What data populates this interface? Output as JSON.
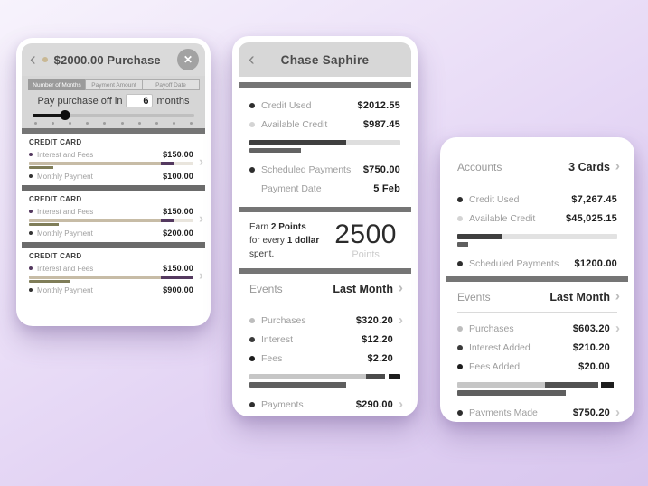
{
  "icons": {
    "back": "‹",
    "close": "✕",
    "chevron_right": "›"
  },
  "purchase_card": {
    "title": "$2000.00 Purchase",
    "dot_color": "#c9b894",
    "tabs": [
      {
        "label": "Number of Months",
        "selected": true
      },
      {
        "label": "Payment Amount",
        "selected": false
      },
      {
        "label": "Payoff Date",
        "selected": false
      }
    ],
    "payoff": {
      "prefix": "Pay purchase off in",
      "value": "6",
      "suffix": "months",
      "slider_pct": 20,
      "tick_count": 10
    },
    "sections": [
      {
        "heading": "CREDIT CARD",
        "interest": {
          "bullet": "#54395f",
          "label": "Interest and Fees",
          "value": "$150.00"
        },
        "monthly": {
          "bullet": "#333333",
          "label": "Monthly Payment",
          "value": "$100.00"
        },
        "bar": {
          "h": 4,
          "track": "#e9e5dd",
          "segments": [
            {
              "color": "#c7bca6",
              "pct": 80
            },
            {
              "color": "#54395f",
              "pct": 8
            }
          ]
        },
        "subbar": {
          "h": 3,
          "track": "transparent",
          "segments": [
            {
              "color": "#7f7d58",
              "pct": 15
            }
          ]
        }
      },
      {
        "heading": "CREDIT CARD",
        "interest": {
          "bullet": "#54395f",
          "label": "Interest and Fees",
          "value": "$150.00"
        },
        "monthly": {
          "bullet": "#333333",
          "label": "Monthly Payment",
          "value": "$200.00"
        },
        "bar": {
          "h": 4,
          "track": "#e9e5dd",
          "segments": [
            {
              "color": "#c7bca6",
              "pct": 80
            },
            {
              "color": "#54395f",
              "pct": 8
            }
          ]
        },
        "subbar": {
          "h": 3,
          "track": "transparent",
          "segments": [
            {
              "color": "#7f7d58",
              "pct": 18
            }
          ]
        }
      },
      {
        "heading": "CREDIT CARD",
        "interest": {
          "bullet": "#54395f",
          "label": "Interest and Fees",
          "value": "$150.00"
        },
        "monthly": {
          "bullet": "#333333",
          "label": "Monthly Payment",
          "value": "$900.00"
        },
        "bar": {
          "h": 4,
          "track": "#e9e5dd",
          "segments": [
            {
              "color": "#c7bca6",
              "pct": 80
            },
            {
              "color": "#54395f",
              "pct": 20
            }
          ]
        },
        "subbar": {
          "h": 3,
          "track": "transparent",
          "segments": [
            {
              "color": "#7f7d58",
              "pct": 25
            }
          ]
        }
      }
    ]
  },
  "account_card": {
    "title": "Chase Saphire",
    "summary": {
      "rows": [
        {
          "bullet": "#2e2e2e",
          "label": "Credit Used",
          "value": "$2012.55"
        },
        {
          "bullet": "#d4d4d4",
          "label": "Available Credit",
          "value": "$987.45"
        }
      ],
      "bars": [
        {
          "h": 6,
          "track": "#dedede",
          "segments": [
            {
              "color": "#3f3f3f",
              "pct": 64
            }
          ]
        },
        {
          "h": 5,
          "track": "transparent",
          "segments": [
            {
              "color": "#636363",
              "pct": 34
            }
          ]
        }
      ],
      "scheduled": {
        "bullet": "#2e2e2e",
        "label": "Scheduled Payments",
        "value": "$750.00"
      },
      "payment_date": {
        "label": "Payment Date",
        "value": "5 Feb"
      }
    },
    "points": {
      "line1": [
        {
          "t": "Earn ",
          "b": false
        },
        {
          "t": "2 Points",
          "b": true
        }
      ],
      "line2": [
        {
          "t": "for every ",
          "b": false
        },
        {
          "t": "1 dollar",
          "b": true
        },
        {
          "t": " spent.",
          "b": false
        }
      ],
      "value": "2500",
      "unit": "Points"
    },
    "events": {
      "title": "Events",
      "filter": "Last Month",
      "rows": [
        {
          "bullet": "#bdbdbd",
          "label": "Purchases",
          "value": "$320.20",
          "chevron": true
        },
        {
          "bullet": "#3a3a3a",
          "label": "Interest",
          "value": "$12.20",
          "chevron": false
        },
        {
          "bullet": "#1c1c1c",
          "label": "Fees",
          "value": "$2.20",
          "chevron": false
        }
      ],
      "bars": [
        {
          "h": 6,
          "track": "transparent",
          "segments": [
            {
              "color": "#c6c6c6",
              "pct": 77
            },
            {
              "color": "#4b4b4b",
              "pct": 13
            },
            {
              "color": "#ffffff",
              "pct": 2
            },
            {
              "color": "#1d1d1d",
              "pct": 8
            }
          ]
        },
        {
          "h": 6,
          "track": "transparent",
          "segments": [
            {
              "color": "#5f5f5f",
              "pct": 64
            }
          ]
        }
      ],
      "footer_row": {
        "bullet": "#2e2e2e",
        "label": "Payments",
        "value": "$290.00",
        "chevron": true
      }
    }
  },
  "overview_card": {
    "accounts": {
      "label": "Accounts",
      "value": "3 Cards"
    },
    "summary": {
      "rows": [
        {
          "bullet": "#2e2e2e",
          "label": "Credit Used",
          "value": "$7,267.45"
        },
        {
          "bullet": "#d4d4d4",
          "label": "Available Credit",
          "value": "$45,025.15"
        }
      ],
      "bars": [
        {
          "h": 6,
          "track": "#e2e2e2",
          "segments": [
            {
              "color": "#3f3f3f",
              "pct": 28
            }
          ]
        },
        {
          "h": 5,
          "track": "transparent",
          "segments": [
            {
              "color": "#5f5f5f",
              "pct": 7
            }
          ]
        }
      ],
      "scheduled": {
        "bullet": "#2e2e2e",
        "label": "Scheduled Payments",
        "value": "$1200.00"
      }
    },
    "events": {
      "title": "Events",
      "filter": "Last Month",
      "rows": [
        {
          "bullet": "#bdbdbd",
          "label": "Purchases",
          "value": "$603.20",
          "chevron": true
        },
        {
          "bullet": "#3a3a3a",
          "label": "Interest Added",
          "value": "$210.20",
          "chevron": false
        },
        {
          "bullet": "#1c1c1c",
          "label": "Fees Added",
          "value": "$20.00",
          "chevron": false
        }
      ],
      "bars": [
        {
          "h": 6,
          "track": "transparent",
          "segments": [
            {
              "color": "#c6c6c6",
              "pct": 55
            },
            {
              "color": "#515151",
              "pct": 33
            },
            {
              "color": "#ffffff",
              "pct": 2
            },
            {
              "color": "#1d1d1d",
              "pct": 8
            }
          ]
        },
        {
          "h": 6,
          "track": "transparent",
          "segments": [
            {
              "color": "#5f5f5f",
              "pct": 68
            }
          ]
        }
      ],
      "footer_row": {
        "bullet": "#2e2e2e",
        "label": "Payments Made",
        "value": "$750.20",
        "chevron": true
      }
    }
  }
}
